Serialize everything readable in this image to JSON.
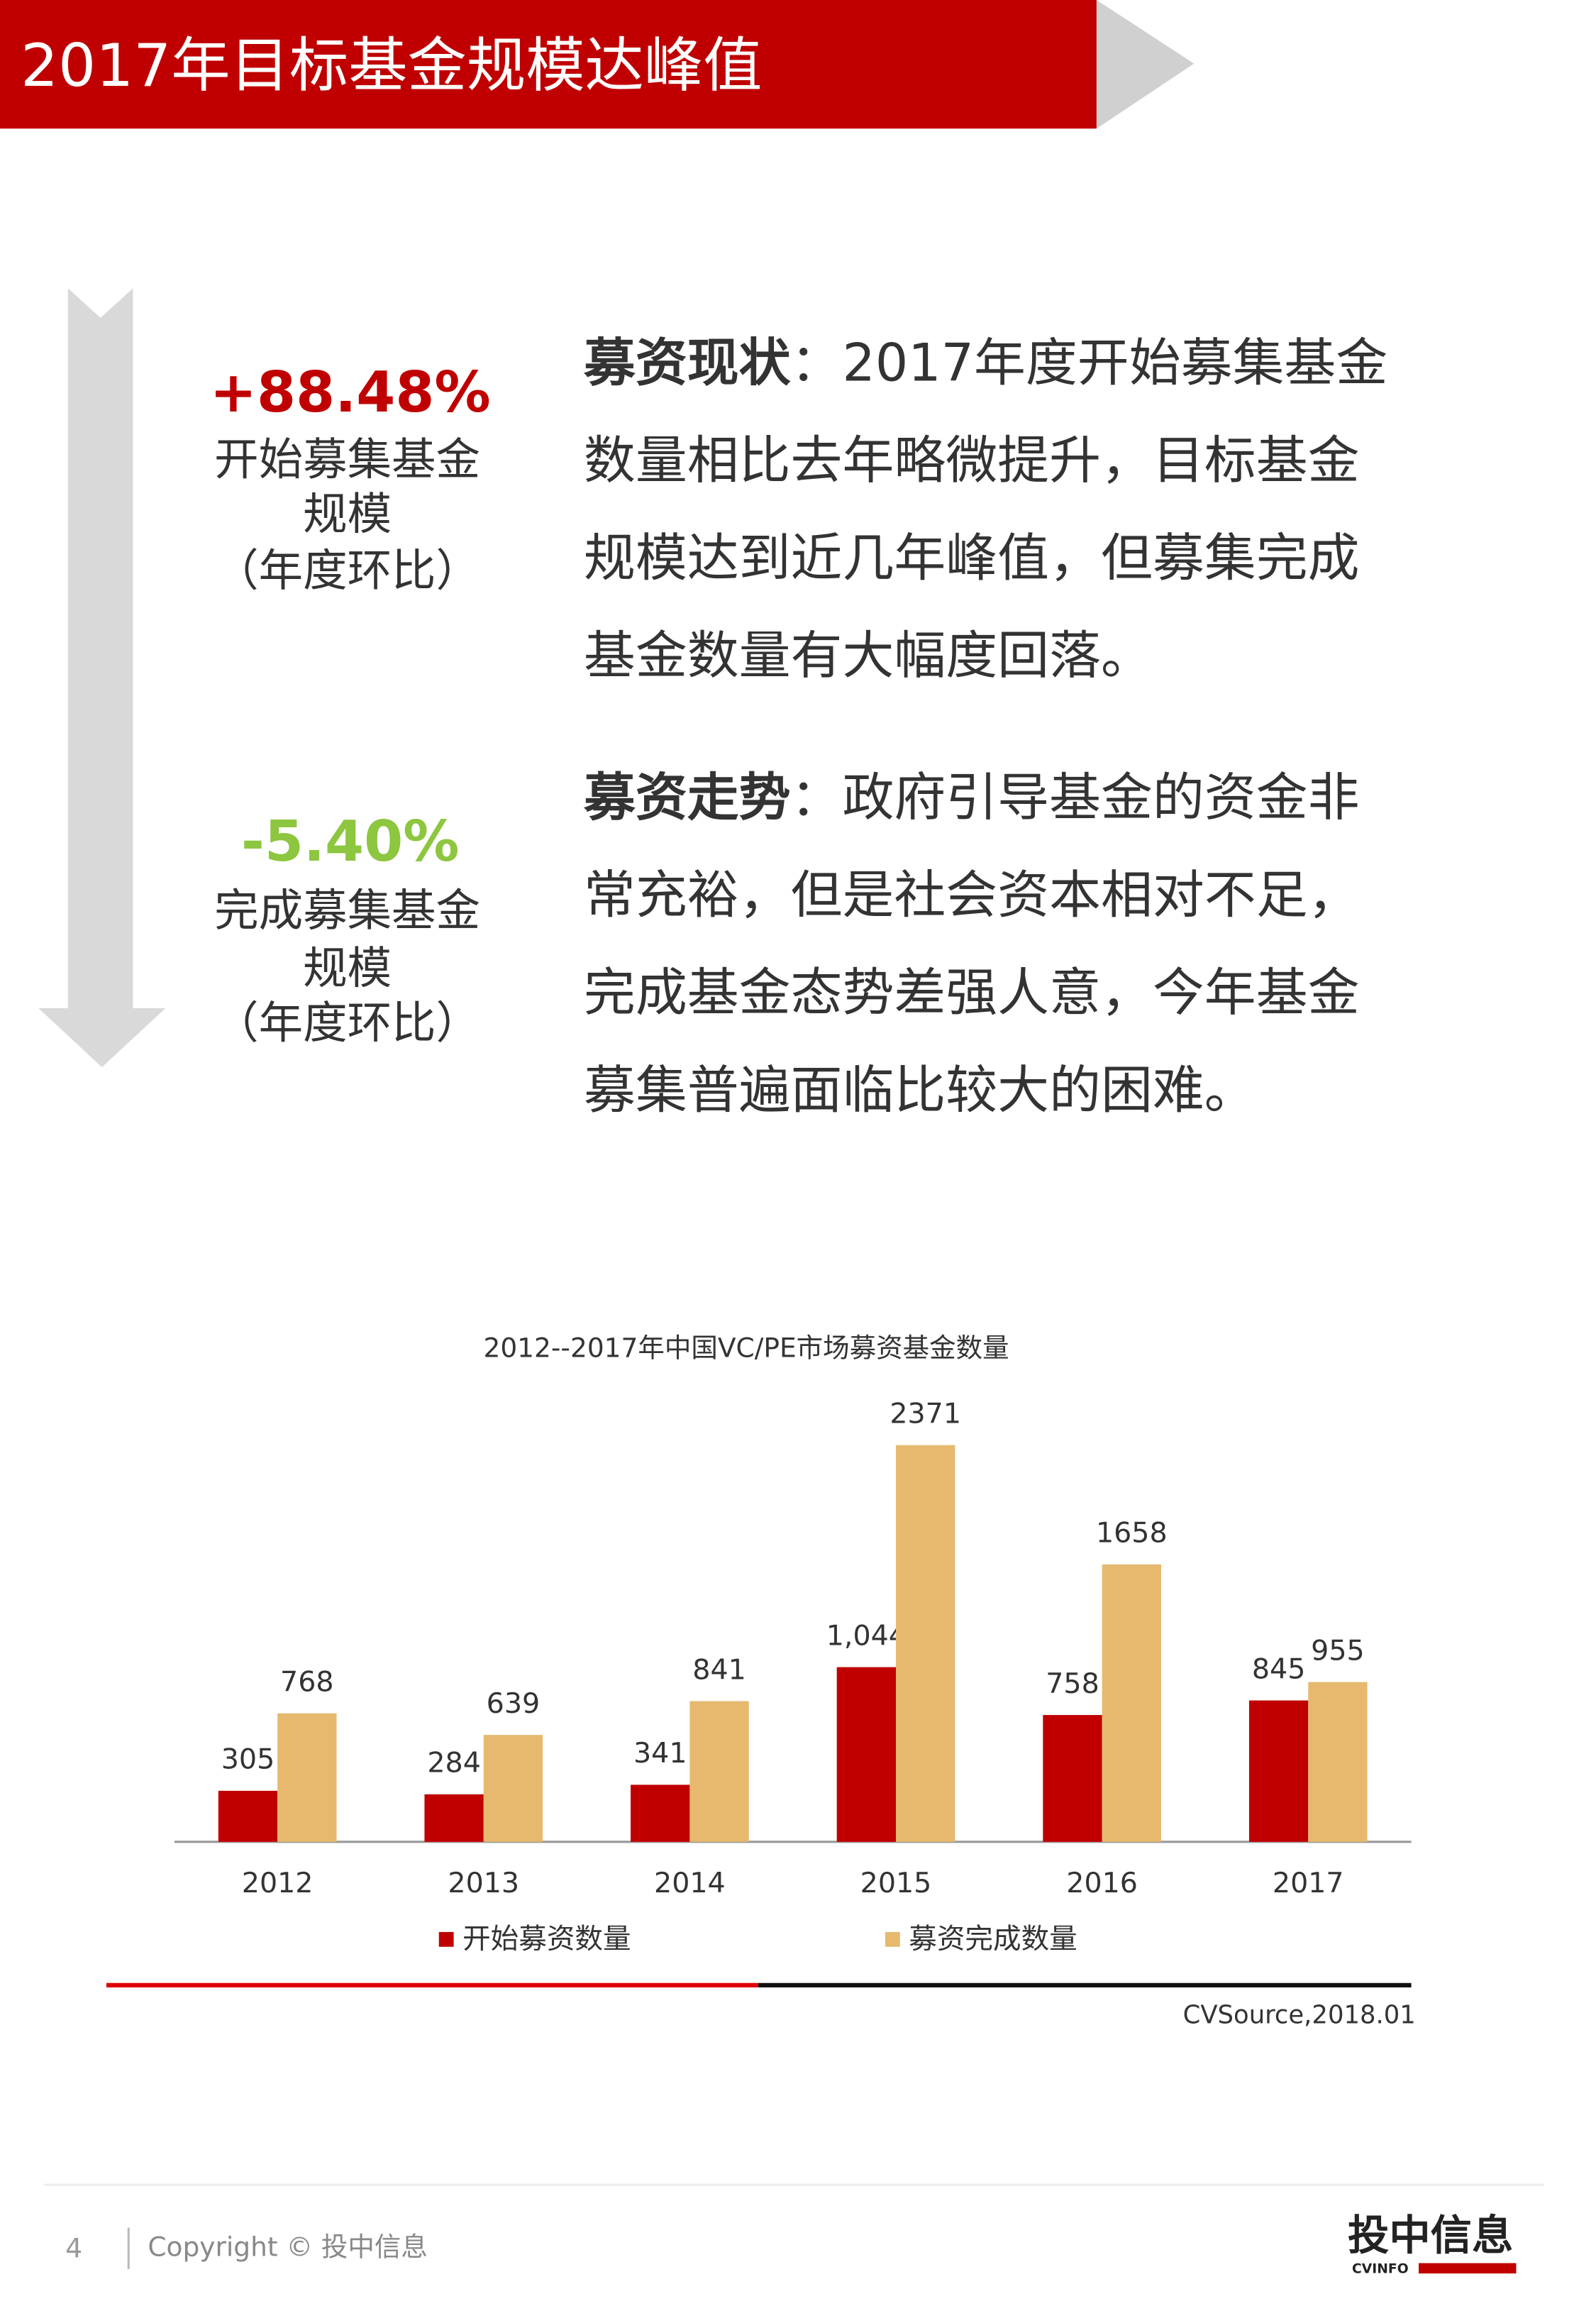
{
  "header": {
    "title": "2017年目标基金规模达峰值"
  },
  "stats": [
    {
      "value": "+88.48%",
      "lines": [
        "开始募集基金",
        "规模",
        "（年度环比）"
      ]
    },
    {
      "value": "-5.40%",
      "lines": [
        "完成募集基金",
        "规模",
        "（年度环比）"
      ]
    }
  ],
  "paragraphs": [
    {
      "label": "募资现状",
      "lines": [
        "：2017年度开始募集基金",
        "数量相比去年略微提升，目标基金",
        "规模达到近几年峰值，但募集完成",
        "基金数量有大幅度回落。"
      ]
    },
    {
      "label": "募资走势",
      "lines": [
        "：政府引导基金的资金非",
        "常充裕，但是社会资本相对不足，",
        "完成基金态势差强人意，今年基金",
        "募集普遍面临比较大的困难。"
      ]
    }
  ],
  "chart_data": {
    "type": "bar",
    "title": "2012--2017年中国VC/PE市场募资基金数量",
    "categories": [
      "2012",
      "2013",
      "2014",
      "2015",
      "2016",
      "2017"
    ],
    "series": [
      {
        "name": "开始募资数量",
        "color": "#c00000",
        "values": [
          305,
          284,
          341,
          1044,
          758,
          845
        ],
        "value_labels": [
          "305",
          "284",
          "341",
          "1,044",
          "758",
          "845"
        ]
      },
      {
        "name": "募资完成数量",
        "color": "#e6b96e",
        "values": [
          768,
          639,
          841,
          2371,
          1658,
          955
        ]
      }
    ],
    "ylim": [
      0,
      2500
    ],
    "source": "CVSource,2018.01"
  },
  "footer": {
    "page": "4",
    "copyright": "Copyright © 投中信息",
    "logo": "投中信息",
    "logo_sub": "CVINFO"
  }
}
